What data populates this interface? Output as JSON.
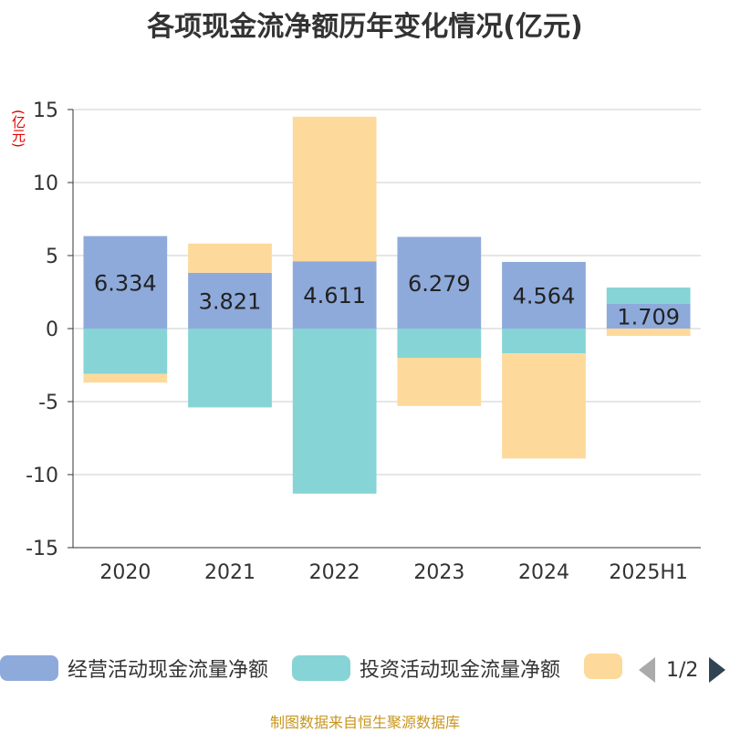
{
  "chart_data": {
    "type": "bar",
    "stacked": true,
    "title": "各项现金流净额历年变化情况(亿元)",
    "unit_label": "(亿元)",
    "categories": [
      "2020",
      "2021",
      "2022",
      "2023",
      "2024",
      "2025H1"
    ],
    "ylim": [
      -15,
      15
    ],
    "yticks": [
      15,
      10,
      5,
      0,
      -5,
      -10,
      -15
    ],
    "grid": true,
    "legend_position": "bottom",
    "series": [
      {
        "name": "经营活动现金流量净额",
        "color": "#8eaadb",
        "values": [
          6.334,
          3.821,
          4.611,
          6.279,
          4.564,
          1.709
        ],
        "show_labels": true
      },
      {
        "name": "投资活动现金流量净额",
        "color": "#86d4d6",
        "values": [
          -3.1,
          -5.4,
          -11.3,
          -2.0,
          -1.7,
          1.1
        ],
        "show_labels": false
      },
      {
        "name": "",
        "color": "#fdd99b",
        "values": [
          -0.6,
          2.0,
          9.9,
          -3.3,
          -7.2,
          -0.5
        ],
        "show_labels": false
      }
    ]
  },
  "legend": {
    "items": [
      {
        "label": "经营活动现金流量净额",
        "color": "#8eaadb"
      },
      {
        "label": "投资活动现金流量净额",
        "color": "#86d4d6"
      },
      {
        "label": "",
        "color": "#fdd99b"
      }
    ],
    "page": "1/2"
  },
  "source": "制图数据来自恒生聚源数据库"
}
